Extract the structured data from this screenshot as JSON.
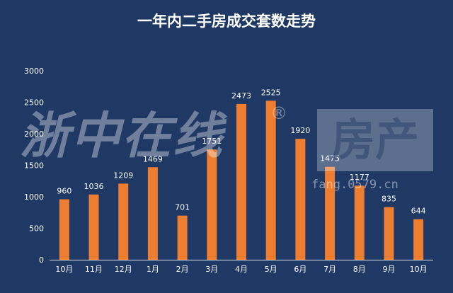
{
  "title": "一年内二手房成交套数走势",
  "watermark": {
    "text": "浙中在线",
    "registered": "®",
    "house": "房产",
    "url": "fang.0579.cn"
  },
  "chart_data": {
    "type": "bar",
    "title": "一年内二手房成交套数走势",
    "categories": [
      "10月",
      "11月",
      "12月",
      "1月",
      "2月",
      "3月",
      "4月",
      "5月",
      "6月",
      "7月",
      "8月",
      "9月",
      "10月"
    ],
    "values": [
      960,
      1036,
      1209,
      1469,
      701,
      1751,
      2473,
      2525,
      1920,
      1475,
      1177,
      835,
      644
    ],
    "ylim": [
      0,
      3000
    ],
    "yticks": [
      0,
      500,
      1000,
      1500,
      2000,
      2500,
      3000
    ],
    "xlabel": "",
    "ylabel": "",
    "grid": false,
    "bar_color": "#ed7d31",
    "background_color": "#1f3864",
    "text_color": "#ffffff"
  }
}
